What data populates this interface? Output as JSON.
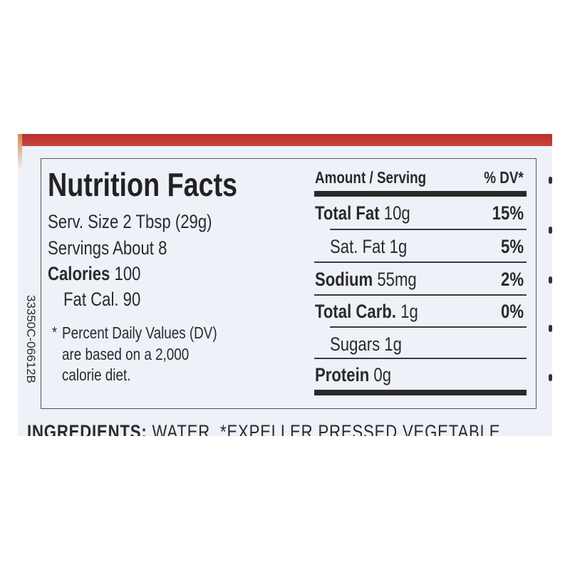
{
  "label": {
    "title": "Nutrition Facts",
    "serving_size": "Serv. Size 2 Tbsp (29g)",
    "servings": "Servings About 8",
    "calories_label": "Calories",
    "calories_value": "100",
    "fat_cal": "Fat Cal. 90",
    "footnote_star": "*",
    "footnote": [
      "Percent Daily Values (DV)",
      "are based on a 2,000",
      "calorie diet."
    ],
    "side_code": "33350C-06612B",
    "header_amount": "Amount / Serving",
    "header_dv": "% DV*",
    "rows": [
      {
        "name": "Total Fat",
        "amount": "10g",
        "dv": "15%"
      },
      {
        "name": "Sat. Fat 1g",
        "amount": "",
        "dv": "5%"
      },
      {
        "name": "Sodium",
        "amount": "55mg",
        "dv": "2%"
      },
      {
        "name": "Total Carb.",
        "amount": "1g",
        "dv": "0%"
      },
      {
        "name": "Sugars 1g",
        "amount": "",
        "dv": ""
      },
      {
        "name": "Protein",
        "amount": "0g",
        "dv": ""
      }
    ],
    "ingredients_label": "INGREDIENTS:",
    "ingredients_text": "WATER, *EXPELLER PRESSED VEGETABLE"
  },
  "colors": {
    "band": "#c0392f",
    "label_bg": "#eef1f8",
    "ink": "#2a2a2c"
  }
}
